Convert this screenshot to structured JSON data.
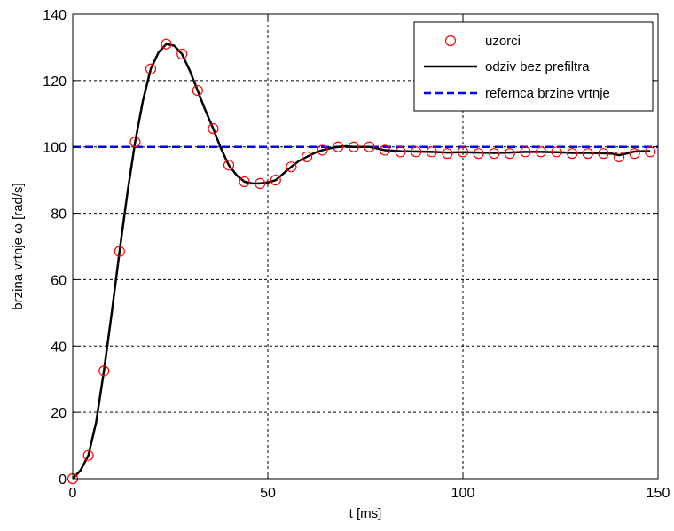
{
  "chart_data": {
    "type": "line",
    "title": "",
    "xlabel": "t [ms]",
    "ylabel": "brzina vrtnje ω [rad/s]",
    "xlim": [
      0,
      150
    ],
    "ylim": [
      0,
      140
    ],
    "xticks": [
      0,
      50,
      100,
      150
    ],
    "yticks": [
      0,
      20,
      40,
      60,
      80,
      100,
      120,
      140
    ],
    "x_tick_labels": [
      "0",
      "50",
      "100",
      "150"
    ],
    "y_tick_labels": [
      "0",
      "20",
      "40",
      "60",
      "80",
      "100",
      "120",
      "140"
    ],
    "grid": true,
    "legend_position": "top-right",
    "series": [
      {
        "name": "uzorci",
        "style": "markers",
        "marker": "circle",
        "color": "#ff0000",
        "x": [
          0,
          4,
          8,
          12,
          16,
          20,
          24,
          28,
          32,
          36,
          40,
          44,
          48,
          52,
          56,
          60,
          64,
          68,
          72,
          76,
          80,
          84,
          88,
          92,
          96,
          100,
          104,
          108,
          112,
          116,
          120,
          124,
          128,
          132,
          136,
          140,
          144,
          148
        ],
        "y": [
          0,
          7,
          32.5,
          68.5,
          101.5,
          123.5,
          131,
          128,
          117,
          105.5,
          94.5,
          89.5,
          89,
          90,
          94,
          97,
          99,
          100,
          100,
          100,
          99,
          98.5,
          98.5,
          98.5,
          98,
          98.5,
          98,
          98,
          98,
          98.5,
          98.5,
          98.5,
          98,
          98,
          98,
          97,
          98,
          98.5
        ]
      },
      {
        "name": "odziv bez prefiltra",
        "style": "line",
        "color": "#000000",
        "x": [
          0,
          2,
          4,
          6,
          8,
          10,
          12,
          14,
          16,
          18,
          20,
          22,
          24,
          26,
          28,
          30,
          32,
          34,
          36,
          38,
          40,
          42,
          44,
          46,
          48,
          50,
          52,
          54,
          56,
          58,
          60,
          62,
          64,
          66,
          68,
          70,
          72,
          74,
          76,
          78,
          80,
          84,
          88,
          92,
          96,
          100,
          104,
          108,
          112,
          116,
          120,
          124,
          128,
          132,
          136,
          138,
          140,
          142,
          144,
          146,
          148
        ],
        "y": [
          0,
          2.5,
          7,
          17,
          32.5,
          50,
          68.5,
          86,
          101.5,
          114,
          123.5,
          128.5,
          131,
          130.5,
          128,
          123,
          117,
          111,
          105.5,
          99.5,
          94.5,
          91.5,
          89.5,
          89,
          89,
          89.3,
          90,
          92,
          94,
          95.8,
          97,
          98.2,
          99,
          99.6,
          100,
          100.2,
          100,
          100,
          100,
          99.5,
          99,
          98.7,
          98.6,
          98.5,
          98.3,
          98.4,
          98.3,
          98.2,
          98.3,
          98.5,
          98.5,
          98.4,
          98.2,
          98.2,
          98.1,
          98,
          97.5,
          98,
          98.6,
          98.7,
          98.7
        ]
      },
      {
        "name": "refernca brzine vrtnje",
        "style": "dashed",
        "color": "#0000ff",
        "x": [
          0,
          150
        ],
        "y": [
          100,
          100
        ]
      }
    ]
  }
}
